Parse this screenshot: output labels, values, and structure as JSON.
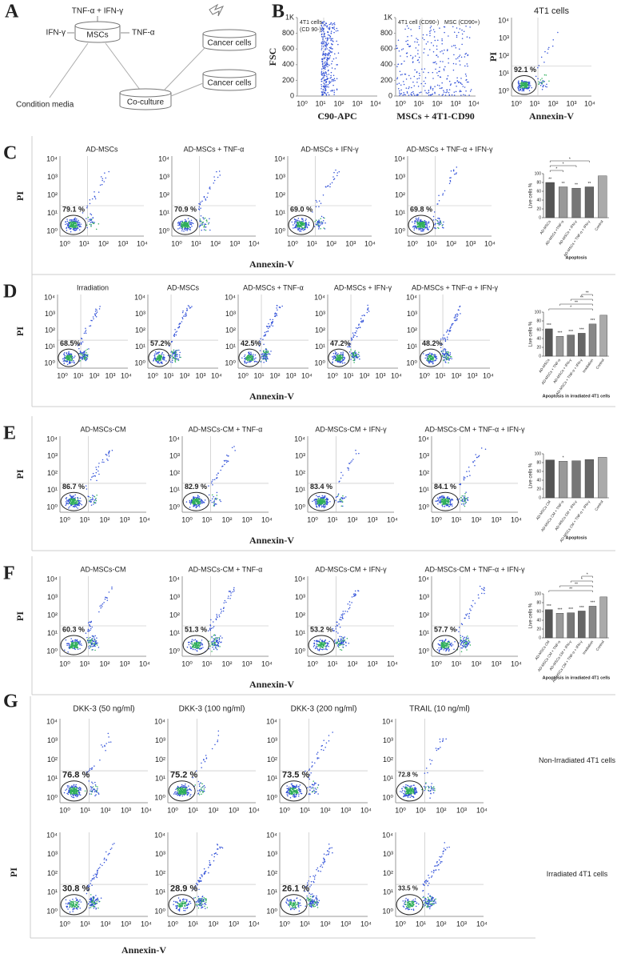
{
  "log_ticks": [
    "10⁰",
    "10¹",
    "10²",
    "10³",
    "10⁴"
  ],
  "A": {
    "letter": "A",
    "combo": "TNF-α + IFN-γ",
    "ifn": "IFN-γ",
    "tnf": "TNF-α",
    "mscs": "MSCs",
    "cm": "Condition media",
    "coculture": "Co-culture",
    "cancer1": "Cancer cells",
    "cancer2": "Cancer cells"
  },
  "B": {
    "letter": "B",
    "plots": [
      {
        "ylabel": "FSC",
        "xlabel": "C90-APC",
        "gates": [
          "4T1 cells",
          "(CD 90-)"
        ],
        "ylim": [
          0,
          1000
        ],
        "yticks": [
          0,
          200,
          400,
          600,
          800,
          {
            "value": 1000,
            "label": "1K"
          }
        ]
      },
      {
        "xlabel": "MSCs + 4T1-CD90",
        "gates": [
          "4T1 cell (CD90-)",
          "MSC (CD90+)"
        ],
        "ylim": [
          0,
          1000
        ],
        "yticks": [
          0,
          200,
          400,
          600,
          800,
          {
            "value": 1000,
            "label": "1K"
          }
        ]
      },
      {
        "title": "4T1 cells",
        "ylabel": "PI",
        "xlabel": "Annexin-V",
        "percent": "92.1 %"
      }
    ]
  },
  "C": {
    "letter": "C",
    "ylabel": "PI",
    "xlabel": "Annexin-V",
    "plots": [
      {
        "title": "AD-MSCs",
        "percent": "79.1 %"
      },
      {
        "title": "AD-MSCs + TNF-α",
        "percent": "70.9 %"
      },
      {
        "title": "AD-MSCs + IFN-γ",
        "percent": "69.0 %"
      },
      {
        "title": "AD-MSCs + TNF-α + IFN-γ",
        "percent": "69.8 %"
      }
    ],
    "bar": {
      "ylabel": "Live cells %",
      "xlabel": "Apoptosis",
      "categories": [
        "AD-MSCs",
        "AD-MSCs +TNF-α",
        "AD-MSCs + IFN-γ",
        "AD-MSCs + TNF-α + IFN-γ",
        "Control"
      ],
      "values": [
        80,
        70,
        67,
        70,
        95
      ],
      "bar_labels": [
        "**",
        "**",
        "**",
        "**",
        null
      ],
      "colors": [
        "#555555",
        "#999999",
        "#777777",
        "#666666",
        "#aaaaaa"
      ],
      "ylim": [
        0,
        100
      ],
      "yticks": [
        0,
        20,
        40,
        60,
        80,
        100
      ],
      "significance": [
        {
          "label": "*",
          "between": [
            "AD-MSCs",
            "AD-MSCs +TNF-α"
          ]
        },
        {
          "label": "*",
          "between": [
            "AD-MSCs",
            "AD-MSCs + IFN-γ"
          ]
        },
        {
          "label": "*",
          "between": [
            "AD-MSCs",
            "AD-MSCs + TNF-α + IFN-γ"
          ]
        }
      ]
    }
  },
  "D": {
    "letter": "D",
    "ylabel": "PI",
    "xlabel": "Annexin-V",
    "plots": [
      {
        "title": "Irradiation",
        "percent": "68.5%"
      },
      {
        "title": "AD-MSCs",
        "percent": "57.2%"
      },
      {
        "title": "AD-MSCs + TNF-α",
        "percent": "42.5%"
      },
      {
        "title": "AD-MSCs + IFN-γ",
        "percent": "47.2%"
      },
      {
        "title": "AD-MSCs + TNF-α + IFN-γ",
        "percent": "48.2%"
      }
    ],
    "bar": {
      "ylabel": "Live cells %",
      "xlabel": "Apoptosis in irradiated 4T1 cells",
      "categories": [
        "AD-MSCs",
        "AD-MSCs + TNF-α",
        "AD-MSCs + IFN-γ",
        "AD-MSCs + TNF-α + IFN-γ",
        "Irradiation",
        "Control"
      ],
      "values": [
        62,
        45,
        48,
        52,
        73,
        93
      ],
      "bar_labels": [
        "***",
        "***",
        "***",
        "***",
        "***",
        null
      ],
      "colors": [
        "#555555",
        "#999999",
        "#777777",
        "#666666",
        "#888888",
        "#aaaaaa"
      ],
      "ylim": [
        0,
        100
      ],
      "yticks": [
        0,
        20,
        40,
        60,
        80,
        100
      ],
      "significance": [
        {
          "label": "*",
          "between": [
            "AD-MSCs",
            "Irradiation"
          ]
        },
        {
          "label": "**",
          "between": [
            "AD-MSCs + TNF-α",
            "Irradiation"
          ]
        },
        {
          "label": "**",
          "between": [
            "AD-MSCs + IFN-γ",
            "Irradiation"
          ]
        },
        {
          "label": "**",
          "between": [
            "AD-MSCs + TNF-α + IFN-γ",
            "Irradiation"
          ]
        }
      ]
    }
  },
  "E": {
    "letter": "E",
    "ylabel": "PI",
    "xlabel": "Annexin-V",
    "plots": [
      {
        "title": "AD-MSCs-CM",
        "percent": "86.7 %"
      },
      {
        "title": "AD-MSCs-CM + TNF-α",
        "percent": "82.9 %"
      },
      {
        "title": "AD-MSCs-CM + IFN-γ",
        "percent": "83.4 %"
      },
      {
        "title": "AD-MSCs-CM + TNF-α + IFN-γ",
        "percent": "84.1 %"
      }
    ],
    "bar": {
      "ylabel": "Live cells %",
      "xlabel": "Apoptosis",
      "categories": [
        "AD-MSCs CM",
        "AD-MSCs CM + TNF-α",
        "AD-MSCs CM + IFN-γ",
        "AD-MSCs CM + TNF-α + IFN-γ",
        "Control"
      ],
      "values": [
        86,
        83,
        84,
        87,
        92
      ],
      "bar_labels": [
        null,
        "*",
        null,
        null,
        null
      ],
      "colors": [
        "#555555",
        "#999999",
        "#777777",
        "#666666",
        "#aaaaaa"
      ],
      "ylim": [
        0,
        100
      ],
      "yticks": [
        0,
        20,
        40,
        60,
        80,
        100
      ],
      "significance": []
    }
  },
  "F": {
    "letter": "F",
    "ylabel": "PI",
    "xlabel": "Annexin-V",
    "plots": [
      {
        "title": "AD-MSCs-CM",
        "percent": "60.3 %"
      },
      {
        "title": "AD-MSCs-CM + TNF-α",
        "percent": "51.3 %"
      },
      {
        "title": "AD-MSCs-CM + IFN-γ",
        "percent": "53.2 %"
      },
      {
        "title": "AD-MSCs-CM + TNF-α + IFN-γ",
        "percent": "57.7 %"
      }
    ],
    "bar": {
      "ylabel": "Live cells %",
      "xlabel": "Apoptosis in irradiated 4T1 cells",
      "categories": [
        "AD-MSCs CM",
        "AD-MSCs CM + TNF-α",
        "AD-MSCs CM + IFN-γ",
        "AD-MSCs CM + TNF-α + IFN-γ",
        "Irradiation",
        "Control"
      ],
      "values": [
        64,
        56,
        57,
        61,
        72,
        93
      ],
      "bar_labels": [
        "***",
        "***",
        "***",
        "***",
        "***",
        null
      ],
      "colors": [
        "#555555",
        "#999999",
        "#777777",
        "#666666",
        "#888888",
        "#aaaaaa"
      ],
      "ylim": [
        0,
        100
      ],
      "yticks": [
        0,
        20,
        40,
        60,
        80,
        100
      ],
      "significance": [
        {
          "label": "**",
          "between": [
            "AD-MSCs CM",
            "Irradiation"
          ]
        },
        {
          "label": "**",
          "between": [
            "AD-MSCs CM + TNF-α",
            "Irradiation"
          ]
        },
        {
          "label": "*",
          "between": [
            "AD-MSCs CM + IFN-γ",
            "Irradiation"
          ]
        },
        {
          "label": "*",
          "between": [
            "AD-MSCs CM + TNF-α + IFN-γ",
            "Irradiation"
          ]
        }
      ]
    }
  },
  "G": {
    "letter": "G",
    "ylabel": "PI",
    "xlabel": "Annexin-V",
    "titles": [
      "DKK-3 (50 ng/ml)",
      "DKK-3 (100 ng/ml)",
      "DKK-3 (200 ng/ml)",
      "TRAIL (10 ng/ml)"
    ],
    "rows": [
      {
        "label": "Non-Irradiated 4T1 cells",
        "percents": [
          "76.8 %",
          "75.2 %",
          "73.5 %",
          "72.8 %"
        ]
      },
      {
        "label": "Irradiated 4T1 cells",
        "percents": [
          "30.8 %",
          "28.9 %",
          "26.1 %",
          "33.5 %"
        ]
      }
    ]
  }
}
